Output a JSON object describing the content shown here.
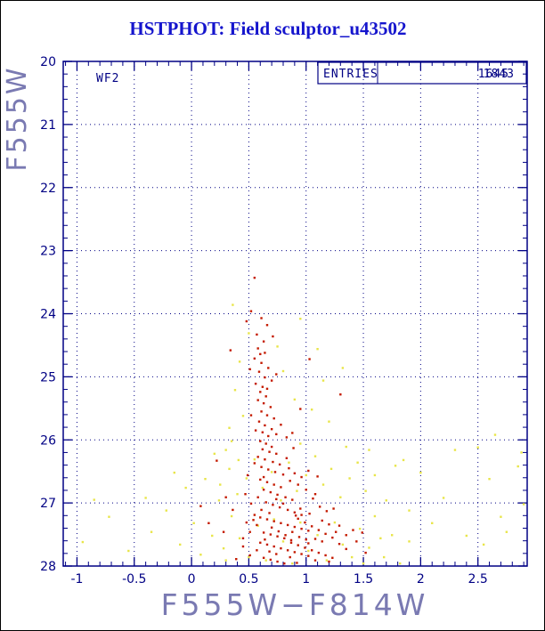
{
  "chart_data": {
    "type": "scatter",
    "title": "HSTPHOT: Field sculptor_u43502",
    "xlabel": "F555W−F814W",
    "ylabel": "F555W",
    "xlim": [
      -1.12,
      2.93
    ],
    "ylim": [
      20,
      28
    ],
    "y_inverted_magnitude_axis": true,
    "grid": "dotted",
    "x_ticks": [
      -1,
      -0.5,
      0,
      0.5,
      1,
      1.5,
      2,
      2.5
    ],
    "x_tick_labels": [
      "-1",
      "-0.5",
      "0",
      "0.5",
      "1",
      "1.5",
      "2",
      "2.5"
    ],
    "y_ticks": [
      20,
      21,
      22,
      23,
      24,
      25,
      26,
      27,
      28
    ],
    "y_tick_labels": [
      "20",
      "21",
      "22",
      "23",
      "24",
      "25",
      "26",
      "27",
      "28"
    ],
    "annotations": {
      "detector_label": "WF2",
      "entries_label": "ENTRIES",
      "entries_values": [
        "1843",
        "1645"
      ]
    },
    "colors": {
      "frame": "#000084",
      "grid": "#000084",
      "title": "#1515cd",
      "axis_label": "#7a7ab2",
      "series_red": "#c41a00",
      "series_yellow": "#e8e549"
    },
    "series": [
      {
        "name": "stars-yellow",
        "color": "#e8e549",
        "marker": "square",
        "size": 2.4,
        "points": [
          [
            -0.95,
            27.62
          ],
          [
            -0.72,
            27.22
          ],
          [
            -0.55,
            27.76
          ],
          [
            -0.4,
            26.92
          ],
          [
            -0.35,
            27.46
          ],
          [
            -0.22,
            27.12
          ],
          [
            -0.1,
            27.66
          ],
          [
            -0.05,
            26.76
          ],
          [
            0.02,
            27.32
          ],
          [
            0.08,
            27.82
          ],
          [
            0.12,
            26.62
          ],
          [
            0.18,
            27.52
          ],
          [
            0.24,
            26.96
          ],
          [
            0.28,
            27.72
          ],
          [
            -0.15,
            26.52
          ],
          [
            -0.85,
            26.95
          ],
          [
            0.3,
            26.16
          ],
          [
            0.2,
            26.22
          ],
          [
            0.35,
            26.02
          ],
          [
            0.41,
            26.32
          ],
          [
            0.36,
            23.86
          ],
          [
            0.95,
            24.08
          ],
          [
            0.5,
            24.31
          ],
          [
            1.1,
            24.56
          ],
          [
            0.42,
            24.76
          ],
          [
            0.8,
            24.91
          ],
          [
            1.15,
            25.06
          ],
          [
            0.38,
            25.21
          ],
          [
            0.9,
            25.36
          ],
          [
            1.05,
            25.52
          ],
          [
            0.45,
            25.62
          ],
          [
            1.2,
            25.71
          ],
          [
            0.33,
            25.81
          ],
          [
            0.75,
            24.52
          ],
          [
            1.32,
            24.86
          ],
          [
            1.85,
            26.32
          ],
          [
            1.9,
            27.12
          ],
          [
            2.0,
            26.52
          ],
          [
            2.1,
            27.32
          ],
          [
            2.2,
            26.92
          ],
          [
            2.3,
            26.16
          ],
          [
            2.4,
            27.52
          ],
          [
            2.5,
            26.12
          ],
          [
            2.55,
            27.66
          ],
          [
            2.6,
            26.62
          ],
          [
            2.65,
            25.92
          ],
          [
            2.7,
            27.22
          ],
          [
            2.75,
            27.46
          ],
          [
            2.85,
            26.42
          ],
          [
            2.9,
            27.02
          ],
          [
            2.88,
            26.2
          ],
          [
            0.35,
            27.21
          ],
          [
            0.42,
            27.56
          ],
          [
            0.5,
            27.86
          ],
          [
            0.58,
            27.36
          ],
          [
            0.65,
            27.91
          ],
          [
            0.72,
            27.26
          ],
          [
            0.8,
            27.61
          ],
          [
            0.88,
            27.96
          ],
          [
            0.95,
            27.31
          ],
          [
            1.02,
            27.76
          ],
          [
            1.1,
            27.51
          ],
          [
            1.18,
            27.91
          ],
          [
            1.25,
            27.31
          ],
          [
            1.32,
            27.66
          ],
          [
            1.4,
            27.86
          ],
          [
            1.47,
            27.41
          ],
          [
            1.55,
            27.71
          ],
          [
            1.6,
            27.21
          ],
          [
            1.68,
            27.86
          ],
          [
            1.75,
            27.51
          ],
          [
            1.82,
            27.96
          ],
          [
            1.9,
            27.61
          ],
          [
            0.3,
            27.91
          ],
          [
            1.5,
            27.96
          ],
          [
            1.65,
            27.56
          ],
          [
            0.25,
            26.71
          ],
          [
            0.33,
            26.46
          ],
          [
            0.4,
            26.86
          ],
          [
            0.48,
            26.61
          ],
          [
            0.55,
            26.31
          ],
          [
            0.62,
            26.76
          ],
          [
            0.7,
            26.51
          ],
          [
            0.78,
            26.96
          ],
          [
            0.85,
            26.36
          ],
          [
            0.92,
            26.81
          ],
          [
            1.0,
            26.56
          ],
          [
            1.08,
            26.26
          ],
          [
            1.15,
            26.71
          ],
          [
            1.22,
            26.46
          ],
          [
            1.3,
            26.91
          ],
          [
            1.38,
            26.61
          ],
          [
            1.45,
            26.36
          ],
          [
            1.52,
            26.81
          ],
          [
            1.6,
            26.56
          ],
          [
            1.7,
            26.96
          ],
          [
            1.78,
            26.41
          ],
          [
            1.35,
            26.11
          ],
          [
            0.95,
            26.06
          ],
          [
            1.55,
            26.16
          ]
        ]
      },
      {
        "name": "stars-red",
        "color": "#c41a00",
        "marker": "square",
        "size": 2.4,
        "points": [
          [
            0.55,
            23.43
          ],
          [
            0.52,
            23.96
          ],
          [
            0.61,
            24.07
          ],
          [
            0.66,
            24.18
          ],
          [
            0.57,
            24.33
          ],
          [
            0.63,
            24.44
          ],
          [
            0.71,
            24.36
          ],
          [
            0.48,
            24.12
          ],
          [
            0.34,
            24.58
          ],
          [
            0.58,
            24.55
          ],
          [
            0.64,
            24.62
          ],
          [
            0.55,
            24.71
          ],
          [
            0.61,
            24.78
          ],
          [
            0.67,
            24.86
          ],
          [
            0.59,
            24.92
          ],
          [
            0.64,
            25.01
          ],
          [
            0.7,
            25.06
          ],
          [
            0.56,
            25.11
          ],
          [
            0.62,
            25.16
          ],
          [
            0.74,
            24.96
          ],
          [
            0.51,
            24.88
          ],
          [
            0.66,
            25.19
          ],
          [
            0.6,
            24.64
          ],
          [
            1.03,
            24.72
          ],
          [
            0.6,
            25.24
          ],
          [
            0.65,
            25.31
          ],
          [
            0.58,
            25.37
          ],
          [
            0.63,
            25.42
          ],
          [
            0.69,
            25.48
          ],
          [
            0.61,
            25.55
          ],
          [
            0.66,
            25.61
          ],
          [
            0.72,
            25.66
          ],
          [
            0.59,
            25.71
          ],
          [
            0.64,
            25.77
          ],
          [
            0.7,
            25.83
          ],
          [
            0.62,
            25.88
          ],
          [
            0.67,
            25.94
          ],
          [
            0.74,
            25.91
          ],
          [
            0.56,
            25.85
          ],
          [
            0.78,
            25.76
          ],
          [
            0.83,
            25.96
          ],
          [
            0.52,
            25.61
          ],
          [
            0.88,
            25.89
          ],
          [
            0.95,
            25.51
          ],
          [
            1.3,
            25.28
          ],
          [
            0.6,
            26.02
          ],
          [
            0.65,
            26.06
          ],
          [
            0.7,
            26.11
          ],
          [
            0.62,
            26.15
          ],
          [
            0.68,
            26.19
          ],
          [
            0.74,
            26.22
          ],
          [
            0.58,
            26.27
          ],
          [
            0.64,
            26.31
          ],
          [
            0.71,
            26.35
          ],
          [
            0.77,
            26.39
          ],
          [
            0.61,
            26.43
          ],
          [
            0.67,
            26.47
          ],
          [
            0.73,
            26.51
          ],
          [
            0.8,
            26.55
          ],
          [
            0.63,
            26.59
          ],
          [
            0.85,
            26.45
          ],
          [
            0.9,
            26.53
          ],
          [
            0.55,
            26.37
          ],
          [
            0.96,
            26.59
          ],
          [
            0.83,
            26.29
          ],
          [
            0.89,
            26.13
          ],
          [
            1.02,
            26.49
          ],
          [
            0.49,
            26.56
          ],
          [
            1.1,
            26.58
          ],
          [
            0.22,
            26.33
          ],
          [
            0.6,
            26.63
          ],
          [
            0.66,
            26.67
          ],
          [
            0.72,
            26.71
          ],
          [
            0.78,
            26.75
          ],
          [
            0.63,
            26.79
          ],
          [
            0.69,
            26.83
          ],
          [
            0.75,
            26.87
          ],
          [
            0.82,
            26.91
          ],
          [
            0.88,
            26.95
          ],
          [
            0.65,
            26.99
          ],
          [
            0.71,
            27.03
          ],
          [
            0.77,
            27.07
          ],
          [
            0.84,
            27.11
          ],
          [
            0.9,
            27.15
          ],
          [
            0.96,
            27.19
          ],
          [
            0.58,
            26.91
          ],
          [
            0.93,
            26.71
          ],
          [
            1.0,
            26.79
          ],
          [
            1.06,
            26.93
          ],
          [
            1.12,
            27.06
          ],
          [
            0.52,
            27.01
          ],
          [
            1.18,
            27.13
          ],
          [
            0.86,
            26.65
          ],
          [
            1.03,
            27.17
          ],
          [
            0.61,
            27.11
          ],
          [
            0.68,
            27.16
          ],
          [
            0.74,
            26.94
          ],
          [
            0.8,
            27.01
          ],
          [
            0.95,
            27.09
          ],
          [
            1.08,
            26.86
          ],
          [
            0.47,
            26.86
          ],
          [
            0.55,
            27.19
          ],
          [
            1.24,
            27.09
          ],
          [
            0.91,
            27.2
          ],
          [
            0.3,
            26.91
          ],
          [
            0.36,
            27.11
          ],
          [
            0.08,
            27.05
          ],
          [
            0.6,
            27.23
          ],
          [
            0.66,
            27.26
          ],
          [
            0.72,
            27.29
          ],
          [
            0.78,
            27.32
          ],
          [
            0.84,
            27.35
          ],
          [
            0.9,
            27.38
          ],
          [
            0.96,
            27.41
          ],
          [
            1.02,
            27.44
          ],
          [
            0.63,
            27.47
          ],
          [
            0.69,
            27.5
          ],
          [
            0.75,
            27.53
          ],
          [
            0.81,
            27.56
          ],
          [
            0.87,
            27.59
          ],
          [
            0.57,
            27.35
          ],
          [
            0.93,
            27.25
          ],
          [
            0.99,
            27.31
          ],
          [
            1.05,
            27.37
          ],
          [
            1.11,
            27.43
          ],
          [
            1.17,
            27.49
          ],
          [
            1.23,
            27.55
          ],
          [
            0.51,
            27.46
          ],
          [
            1.29,
            27.36
          ],
          [
            1.08,
            27.57
          ],
          [
            0.45,
            27.56
          ],
          [
            1.35,
            27.51
          ],
          [
            0.88,
            27.46
          ],
          [
            0.7,
            27.39
          ],
          [
            0.76,
            27.45
          ],
          [
            0.82,
            27.51
          ],
          [
            0.94,
            27.54
          ],
          [
            1.0,
            27.58
          ],
          [
            1.14,
            27.28
          ],
          [
            1.2,
            27.34
          ],
          [
            0.64,
            27.58
          ],
          [
            1.26,
            27.46
          ],
          [
            0.54,
            27.27
          ],
          [
            1.41,
            27.43
          ],
          [
            0.48,
            27.31
          ],
          [
            0.15,
            27.32
          ],
          [
            0.28,
            27.46
          ],
          [
            1.49,
            27.47
          ],
          [
            0.6,
            27.63
          ],
          [
            0.66,
            27.66
          ],
          [
            0.72,
            27.69
          ],
          [
            0.78,
            27.72
          ],
          [
            0.84,
            27.75
          ],
          [
            0.9,
            27.78
          ],
          [
            0.96,
            27.81
          ],
          [
            1.02,
            27.84
          ],
          [
            0.63,
            27.87
          ],
          [
            0.69,
            27.9
          ],
          [
            0.75,
            27.93
          ],
          [
            0.81,
            27.96
          ],
          [
            0.87,
            27.63
          ],
          [
            0.93,
            27.67
          ],
          [
            0.99,
            27.71
          ],
          [
            1.05,
            27.75
          ],
          [
            1.11,
            27.79
          ],
          [
            1.17,
            27.83
          ],
          [
            1.23,
            27.87
          ],
          [
            0.57,
            27.75
          ],
          [
            1.29,
            27.65
          ],
          [
            0.51,
            27.83
          ],
          [
            1.35,
            27.73
          ],
          [
            1.08,
            27.91
          ],
          [
            0.92,
            27.95
          ],
          [
            1.14,
            27.61
          ],
          [
            0.45,
            27.69
          ],
          [
            1.2,
            27.93
          ],
          [
            0.74,
            27.81
          ],
          [
            0.68,
            27.77
          ],
          [
            1.44,
            27.61
          ],
          [
            0.39,
            27.89
          ],
          [
            1.02,
            27.64
          ],
          [
            0.86,
            27.86
          ],
          [
            1.52,
            27.79
          ]
        ]
      }
    ]
  }
}
